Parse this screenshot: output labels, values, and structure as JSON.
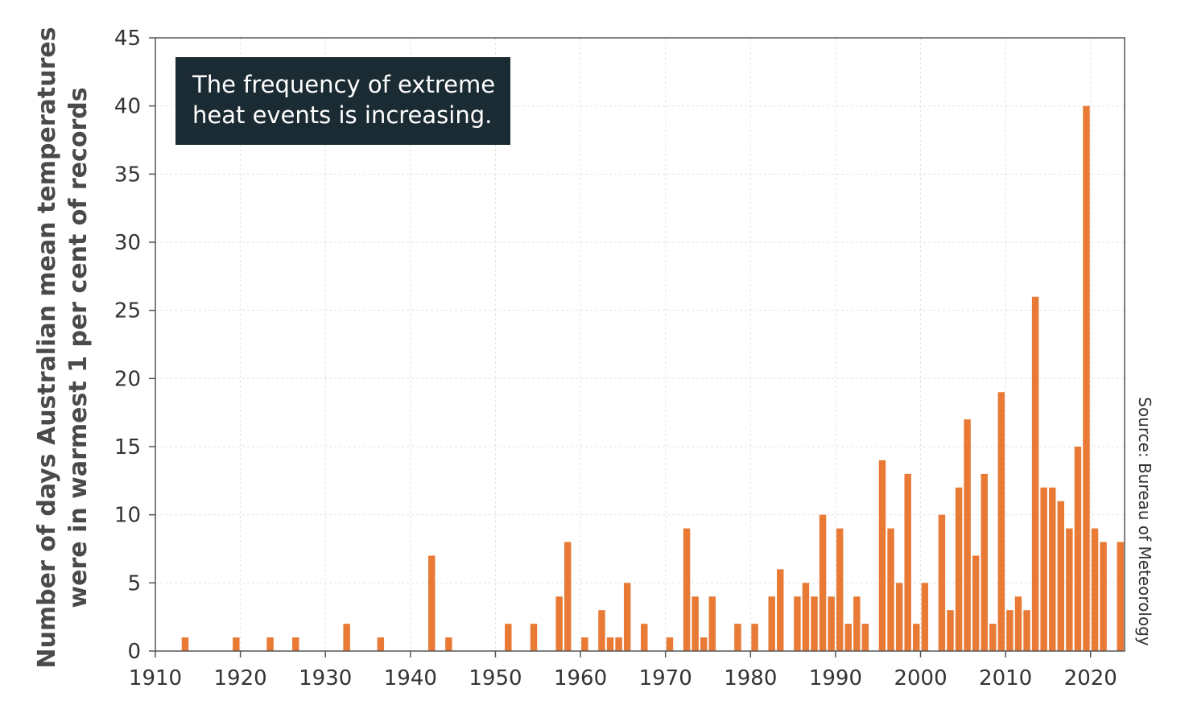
{
  "chart_data": {
    "type": "bar",
    "ylabel_lines": [
      "Number of days Australian mean temperatures",
      "were in warmest 1 per cent of records"
    ],
    "annotation_lines": [
      "The frequency of extreme",
      "heat events is increasing."
    ],
    "source": "Source: Bureau of Meteorology",
    "xlim": [
      1910,
      2024
    ],
    "ylim": [
      0,
      45
    ],
    "x_ticks": [
      "1910",
      "1920",
      "1930",
      "1940",
      "1950",
      "1960",
      "1970",
      "1980",
      "1990",
      "2000",
      "2010",
      "2020"
    ],
    "y_ticks": [
      "0",
      "5",
      "10",
      "15",
      "20",
      "25",
      "30",
      "35",
      "40",
      "45"
    ],
    "grid": true,
    "color": "#e87a35",
    "x": [
      1913,
      1919,
      1923,
      1926,
      1932,
      1936,
      1942,
      1944,
      1951,
      1954,
      1957,
      1958,
      1960,
      1962,
      1963,
      1964,
      1965,
      1967,
      1970,
      1972,
      1973,
      1974,
      1975,
      1978,
      1980,
      1982,
      1983,
      1985,
      1986,
      1987,
      1988,
      1989,
      1990,
      1991,
      1992,
      1993,
      1995,
      1996,
      1997,
      1998,
      1999,
      2000,
      2002,
      2003,
      2004,
      2005,
      2006,
      2007,
      2008,
      2009,
      2010,
      2011,
      2012,
      2013,
      2014,
      2015,
      2016,
      2017,
      2018,
      2019,
      2020,
      2021,
      2023
    ],
    "values": [
      1,
      1,
      1,
      1,
      2,
      1,
      7,
      1,
      2,
      2,
      4,
      8,
      1,
      3,
      1,
      1,
      5,
      2,
      1,
      9,
      4,
      1,
      4,
      2,
      2,
      4,
      6,
      4,
      5,
      4,
      10,
      4,
      9,
      2,
      4,
      2,
      14,
      9,
      5,
      13,
      2,
      5,
      10,
      3,
      12,
      17,
      7,
      13,
      2,
      19,
      3,
      4,
      3,
      26,
      12,
      12,
      11,
      9,
      15,
      40,
      9,
      8,
      8
    ]
  }
}
